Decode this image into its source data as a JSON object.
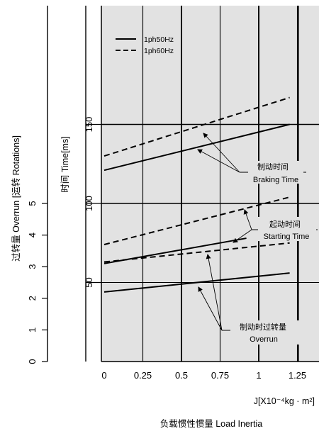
{
  "chart_data": {
    "type": "line",
    "xlabel": "负载惯性惯量 Load Inertia",
    "xunit_label": "J[X10⁻⁴kg · m²]",
    "ylabel_time": "时间 Time[ms]",
    "ylabel_overrun": "过转量 Overrun [运转 Rotations]",
    "xlim": [
      0,
      1.35
    ],
    "ylim_time": [
      0,
      175
    ],
    "ylim_overrun": [
      0,
      5
    ],
    "x_ticks": [
      "0",
      "0.25",
      "0.5",
      "0.75",
      "1",
      "1.25"
    ],
    "y_time_ticks": [
      "50",
      "100",
      "150"
    ],
    "y_overrun_ticks": [
      "0",
      "1",
      "2",
      "3",
      "4",
      "5"
    ],
    "horizontal_reference_lines": [
      150,
      100,
      50
    ],
    "grid": "vertical",
    "legend": {
      "position": "top-left",
      "entries": [
        {
          "name": "1ph50Hz",
          "style": "solid"
        },
        {
          "name": "1ph60Hz",
          "style": "dashed"
        }
      ]
    },
    "series": [
      {
        "group": "braking",
        "name": "1ph50Hz",
        "style": "solid",
        "x": [
          0,
          1.2
        ],
        "y": [
          121,
          150
        ]
      },
      {
        "group": "braking",
        "name": "1ph60Hz",
        "style": "dashed",
        "x": [
          0,
          1.2
        ],
        "y": [
          130,
          167
        ]
      },
      {
        "group": "starting",
        "name": "1ph50Hz",
        "style": "solid",
        "x": [
          0,
          0.92
        ],
        "y": [
          62,
          78
        ]
      },
      {
        "group": "starting",
        "name": "1ph60Hz",
        "style": "dashed",
        "x": [
          0,
          1.2
        ],
        "y": [
          74,
          104
        ]
      },
      {
        "group": "starting",
        "name": "1ph60Hz",
        "style": "dashed",
        "x": [
          0,
          1.2
        ],
        "y": [
          63,
          75
        ]
      },
      {
        "group": "overrun",
        "name": "1ph50Hz",
        "style": "solid",
        "x": [
          0,
          1.2
        ],
        "y": [
          44,
          56
        ]
      }
    ],
    "annotations": {
      "braking": [
        "制动时间",
        "Braking Time"
      ],
      "starting": [
        "起动时间",
        "Starting Time"
      ],
      "overrun": [
        "制动时过转量",
        "Overrun"
      ]
    }
  }
}
